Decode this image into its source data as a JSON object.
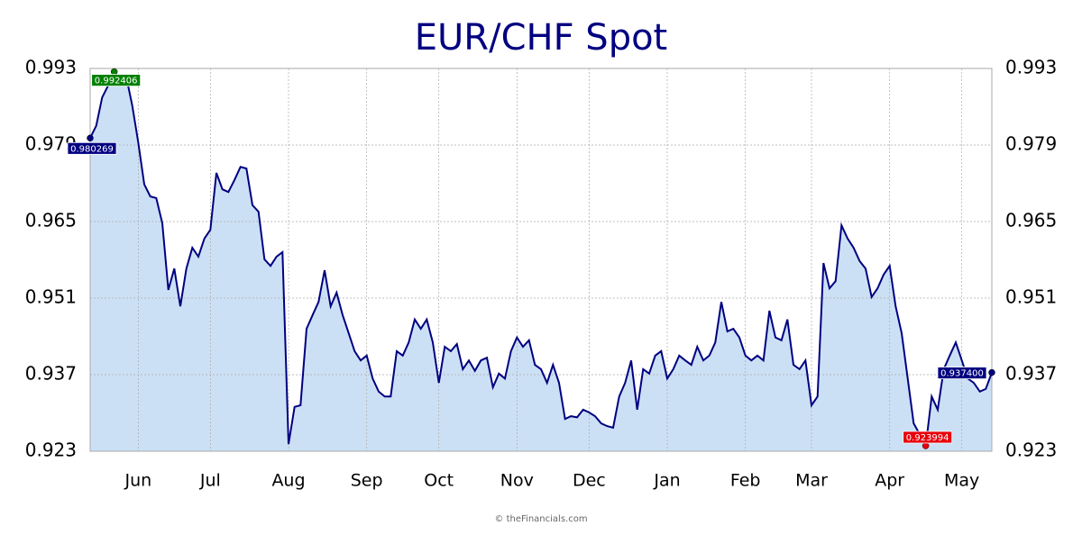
{
  "chart_data": {
    "type": "area",
    "title": "EUR/CHF Spot",
    "footer": "© theFinancials.com",
    "categories": [
      null,
      null,
      null,
      null,
      null,
      null,
      null,
      null,
      "Jun",
      null,
      null,
      null,
      null,
      null,
      null,
      null,
      null,
      null,
      null,
      null,
      "Jul",
      null,
      null,
      null,
      null,
      null,
      null,
      null,
      null,
      null,
      null,
      null,
      null,
      "Aug",
      null,
      null,
      null,
      null,
      null,
      null,
      null,
      null,
      null,
      null,
      null,
      null,
      "Sep",
      null,
      null,
      null,
      null,
      null,
      null,
      null,
      null,
      null,
      null,
      null,
      "Oct",
      null,
      null,
      null,
      null,
      null,
      null,
      null,
      null,
      null,
      null,
      null,
      null,
      "Nov",
      null,
      null,
      null,
      null,
      null,
      null,
      null,
      null,
      null,
      null,
      null,
      "Dec",
      null,
      null,
      null,
      null,
      null,
      null,
      null,
      null,
      null,
      null,
      null,
      null,
      "Jan",
      null,
      null,
      null,
      null,
      null,
      null,
      null,
      null,
      null,
      null,
      null,
      null,
      "Feb",
      null,
      null,
      null,
      null,
      null,
      null,
      null,
      null,
      null,
      null,
      "Mar",
      null,
      null,
      null,
      null,
      null,
      null,
      null,
      null,
      null,
      null,
      null,
      null,
      "Apr",
      null,
      null,
      null,
      null,
      null,
      null,
      null,
      null,
      null,
      null,
      null,
      "May",
      null,
      null,
      null,
      null,
      null
    ],
    "values": [
      0.980269,
      0.9825,
      0.9877,
      0.9899,
      0.992406,
      0.991,
      0.9915,
      0.9862,
      0.9795,
      0.9718,
      0.9696,
      0.9693,
      0.9647,
      0.9525,
      0.9564,
      0.9495,
      0.9564,
      0.9602,
      0.9586,
      0.9619,
      0.9635,
      0.9739,
      0.9709,
      0.9704,
      0.9726,
      0.975,
      0.9747,
      0.968,
      0.9668,
      0.9581,
      0.9569,
      0.9586,
      0.9594,
      0.9243,
      0.9311,
      0.9314,
      0.9454,
      0.9479,
      0.9503,
      0.9561,
      0.9495,
      0.952,
      0.9479,
      0.9446,
      0.9413,
      0.9396,
      0.9405,
      0.9363,
      0.9339,
      0.933,
      0.933,
      0.9413,
      0.9405,
      0.9429,
      0.9471,
      0.9454,
      0.9471,
      0.9429,
      0.9355,
      0.9421,
      0.9413,
      0.9426,
      0.938,
      0.9396,
      0.9377,
      0.9396,
      0.9401,
      0.9347,
      0.9372,
      0.9363,
      0.9413,
      0.9438,
      0.9421,
      0.9433,
      0.9388,
      0.938,
      0.9355,
      0.9388,
      0.9355,
      0.9289,
      0.9294,
      0.9292,
      0.9306,
      0.9301,
      0.9294,
      0.9281,
      0.9276,
      0.9273,
      0.933,
      0.9355,
      0.9396,
      0.9306,
      0.938,
      0.9372,
      0.9405,
      0.9413,
      0.9363,
      0.938,
      0.9405,
      0.9396,
      0.9388,
      0.9421,
      0.9396,
      0.9405,
      0.9429,
      0.9503,
      0.9449,
      0.9454,
      0.9438,
      0.9405,
      0.9396,
      0.9405,
      0.9396,
      0.9487,
      0.9438,
      0.9433,
      0.9471,
      0.9388,
      0.938,
      0.9396,
      0.9314,
      0.933,
      0.9574,
      0.9528,
      0.9541,
      0.9643,
      0.9619,
      0.9602,
      0.9578,
      0.9564,
      0.9512,
      0.9528,
      0.9553,
      0.9569,
      0.9495,
      0.9446,
      0.9363,
      0.9281,
      0.9261,
      0.923994,
      0.933,
      0.9306,
      0.938,
      0.9405,
      0.9429,
      0.9396,
      0.9363,
      0.9355,
      0.9339,
      0.9344,
      0.9374
    ],
    "value_labels": [
      "0.980269",
      null,
      null,
      null,
      "0.992406",
      null,
      null,
      null,
      null,
      null,
      null,
      null,
      null,
      null,
      null,
      null,
      null,
      null,
      null,
      null,
      null,
      null,
      null,
      null,
      null,
      null,
      null,
      null,
      null,
      null,
      null,
      null,
      null,
      null,
      null,
      null,
      null,
      null,
      null,
      null,
      null,
      null,
      null,
      null,
      null,
      null,
      null,
      null,
      null,
      null,
      null,
      null,
      null,
      null,
      null,
      null,
      null,
      null,
      null,
      null,
      null,
      null,
      null,
      null,
      null,
      null,
      null,
      null,
      null,
      null,
      null,
      null,
      null,
      null,
      null,
      null,
      null,
      null,
      null,
      null,
      null,
      null,
      null,
      null,
      null,
      null,
      null,
      null,
      null,
      null,
      null,
      null,
      null,
      null,
      null,
      null,
      null,
      null,
      null,
      null,
      null,
      null,
      null,
      null,
      null,
      null,
      null,
      null,
      null,
      null,
      null,
      null,
      null,
      null,
      null,
      null,
      null,
      null,
      null,
      null,
      null,
      null,
      null,
      null,
      null,
      null,
      null,
      null,
      null,
      null,
      null,
      null,
      null,
      null,
      null,
      null,
      null,
      null,
      null,
      "0.923994",
      null,
      null,
      null,
      null,
      null,
      null,
      null,
      null,
      null,
      null,
      "0.937400"
    ],
    "color": "#000080",
    "fill": "#cce0f5",
    "high_color": "#008000",
    "low_color": "#e8000b",
    "ylim": [
      0.923,
      0.993
    ],
    "yticks": [
      0.923,
      0.937,
      0.951,
      0.965,
      0.979,
      0.993
    ],
    "grid": true
  }
}
